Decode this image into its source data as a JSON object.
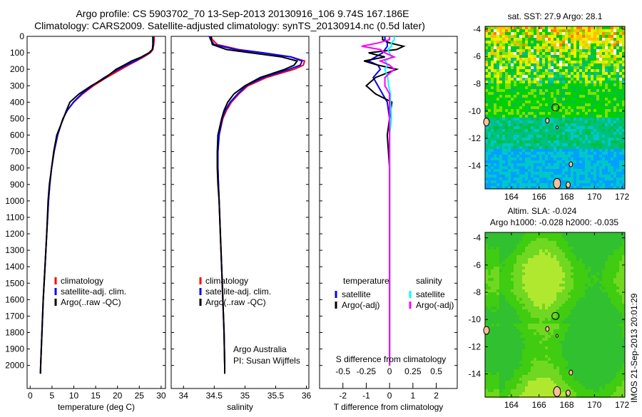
{
  "title": {
    "line1": "Argo profile: CS 5903702_70 13-Sep-2013 20130916_106 9.74S 167.186E",
    "line2": "Climatology: CARS2009. Satellite-adjusted climatology: synTS_20130914.nc (0.5d later)"
  },
  "side_stamp": "IMOS 21-Sep-2013 20:01:29",
  "colors": {
    "climatology": "#ff0000",
    "satellite": "#0000ff",
    "argo": "#000000",
    "sal_satellite": "#00ffff",
    "sal_argo": "#ff00ff"
  },
  "chart_data": [
    {
      "type": "line",
      "xlabel": "temperature (deg C)",
      "ylabel": "",
      "xlim": [
        -0.7,
        31
      ],
      "ylim": [
        2140,
        0
      ],
      "xticks": [
        "0",
        "5",
        "10",
        "15",
        "20",
        "25",
        "30"
      ],
      "yticks": [
        "0",
        "100",
        "200",
        "300",
        "400",
        "500",
        "600",
        "700",
        "800",
        "900",
        "1000",
        "1100",
        "1200",
        "1300",
        "1400",
        "1500",
        "1600",
        "1700",
        "1800",
        "1900",
        "2000"
      ],
      "depth": [
        0,
        20,
        50,
        80,
        100,
        125,
        150,
        175,
        200,
        250,
        300,
        350,
        400,
        450,
        500,
        600,
        700,
        800,
        900,
        1000,
        1200,
        1400,
        1600,
        1800,
        2000,
        2050
      ],
      "legend": [
        "climatology",
        "satellite-adj. clim.",
        "Argo(..raw -QC)"
      ],
      "series": [
        {
          "name": "climatology",
          "color": "#ff0000",
          "values": [
            28.4,
            28.4,
            28.3,
            28.1,
            27.5,
            26,
            24.3,
            22.5,
            20.8,
            17.5,
            14.5,
            12,
            10,
            8.5,
            7.5,
            6.3,
            5.5,
            4.9,
            4.5,
            4.2,
            3.8,
            3.4,
            3.0,
            2.7,
            2.4,
            2.35
          ]
        },
        {
          "name": "satellite-adj. clim.",
          "color": "#0000ff",
          "values": [
            28.2,
            28.2,
            28.2,
            28.0,
            27.3,
            25.7,
            24,
            22,
            20.2,
            17,
            14.2,
            11.8,
            9.9,
            8.5,
            7.5,
            6.3,
            5.5,
            4.9,
            4.5,
            4.2,
            3.8,
            3.4,
            3.0,
            2.7,
            2.4,
            2.35
          ]
        },
        {
          "name": "Argo(..raw -QC)",
          "color": "#000000",
          "values": [
            28.1,
            28.1,
            28.1,
            28.0,
            27.2,
            25.5,
            23.2,
            21.5,
            19.7,
            17.3,
            14.0,
            11.2,
            9.1,
            8.3,
            7.6,
            6.1,
            5.4,
            4.9,
            4.4,
            4.1,
            3.8,
            3.4,
            3.0,
            2.7,
            2.4,
            2.35
          ]
        }
      ]
    },
    {
      "type": "line",
      "xlabel": "salinity",
      "xlim": [
        33.8,
        36.04
      ],
      "ylim": [
        2140,
        0
      ],
      "xticks": [
        "34",
        "34.5",
        "35",
        "35.5",
        "36"
      ],
      "depth": [
        0,
        20,
        50,
        80,
        100,
        125,
        150,
        175,
        200,
        250,
        300,
        350,
        400,
        450,
        500,
        600,
        700,
        800,
        900,
        1000,
        1200,
        1400,
        1600,
        1800,
        2000,
        2050
      ],
      "legend": [
        "climatology",
        "satellite-adj. clim.",
        "Argo(..raw -QC)"
      ],
      "annotation": [
        "Argo Australia",
        "PI: Susan Wijffels"
      ],
      "series": [
        {
          "name": "climatology",
          "color": "#ff0000",
          "values": [
            34.45,
            34.47,
            34.55,
            34.9,
            35.3,
            35.75,
            35.97,
            35.95,
            35.8,
            35.35,
            35.05,
            34.9,
            34.78,
            34.7,
            34.64,
            34.58,
            34.56,
            34.56,
            34.57,
            34.58,
            34.6,
            34.62,
            34.64,
            34.66,
            34.67,
            34.67
          ]
        },
        {
          "name": "satellite-adj. clim.",
          "color": "#0000ff",
          "values": [
            34.42,
            34.44,
            34.5,
            34.85,
            35.3,
            35.75,
            35.93,
            35.9,
            35.72,
            35.3,
            35.02,
            34.88,
            34.76,
            34.68,
            34.63,
            34.58,
            34.56,
            34.56,
            34.57,
            34.58,
            34.6,
            34.62,
            34.64,
            34.66,
            34.67,
            34.67
          ]
        },
        {
          "name": "Argo(..raw -QC)",
          "color": "#000000",
          "values": [
            34.45,
            34.45,
            34.47,
            34.7,
            35.1,
            35.6,
            35.85,
            35.8,
            35.65,
            35.25,
            35.0,
            34.82,
            34.72,
            34.66,
            34.62,
            34.56,
            34.55,
            34.55,
            34.56,
            34.58,
            34.6,
            34.62,
            34.64,
            34.66,
            34.67,
            34.67
          ]
        }
      ]
    },
    {
      "type": "line",
      "xlabel": "T difference from climatology",
      "x2label": "S difference from climatology",
      "xlim": [
        -3,
        2.9
      ],
      "ylim": [
        2140,
        0
      ],
      "xticks": [
        "-2",
        "-1",
        "0",
        "1",
        "2"
      ],
      "x2ticks": [
        "-0.5",
        "-0.25",
        "0",
        "0.25",
        "0.5"
      ],
      "depth": [
        0,
        20,
        40,
        60,
        80,
        100,
        125,
        150,
        175,
        200,
        250,
        300,
        350,
        400,
        500,
        600,
        800,
        1000,
        1500,
        2000
      ],
      "legend_headers": [
        "temperature",
        "salinity"
      ],
      "legend": [
        "satellite",
        "Argo(-adj)",
        "satellite",
        "Argo(-adj)"
      ],
      "series": [
        {
          "name": "T satellite",
          "color": "#0000ff",
          "scale": "T",
          "values": [
            -0.2,
            -0.2,
            -0.1,
            -0.1,
            -0.2,
            -0.3,
            -0.6,
            -0.9,
            -0.5,
            -0.4,
            -0.7,
            -0.5,
            -0.3,
            -0.1,
            0,
            0,
            0,
            0,
            0,
            0
          ]
        },
        {
          "name": "T Argo(-adj)",
          "color": "#000000",
          "scale": "T",
          "values": [
            -0.3,
            -0.3,
            0,
            0.6,
            0.3,
            -0.9,
            -0.2,
            -1.1,
            -0.5,
            0.3,
            -0.6,
            -1.0,
            -0.6,
            0.1,
            0,
            -0.1,
            0,
            0,
            0,
            0
          ]
        },
        {
          "name": "S satellite",
          "color": "#00ffff",
          "scale": "S",
          "values": [
            0.05,
            0.05,
            0.02,
            0.02,
            -0.02,
            0,
            0.02,
            -0.05,
            -0.02,
            -0.05,
            -0.02,
            -0.01,
            0.01,
            0.01,
            0.02,
            0,
            0,
            0,
            0,
            0
          ]
        },
        {
          "name": "S Argo(-adj)",
          "color": "#ff00ff",
          "scale": "S",
          "values": [
            0,
            0,
            -0.12,
            -0.3,
            -0.1,
            -0.05,
            0.05,
            -0.1,
            0,
            0.05,
            -0.05,
            -0.05,
            0,
            0,
            0,
            0,
            0,
            0,
            0,
            0
          ]
        }
      ]
    },
    {
      "type": "heatmap",
      "title": "sat. SST: 27.9 Argo: 28.1",
      "xlim": [
        162.1,
        172.2
      ],
      "ylim": [
        -15.7,
        -3.8
      ],
      "xticks": [
        "164",
        "166",
        "168",
        "170",
        "172"
      ],
      "yticks": [
        "-4",
        "-6",
        "-8",
        "-10",
        "-12",
        "-14"
      ],
      "marker": {
        "lon": 167.186,
        "lat": -9.74
      }
    },
    {
      "type": "heatmap",
      "title": "Altim. SLA: -0.024",
      "subtitle": "Argo h1000: -0.028 h2000: -0.035",
      "xlim": [
        162.1,
        172.2
      ],
      "ylim": [
        -15.7,
        -3.6
      ],
      "xticks": [
        "164",
        "166",
        "168",
        "170",
        "172"
      ],
      "yticks": [
        "-4",
        "-6",
        "-8",
        "-10",
        "-12",
        "-14"
      ],
      "marker": {
        "lon": 167.186,
        "lat": -9.74
      }
    }
  ]
}
